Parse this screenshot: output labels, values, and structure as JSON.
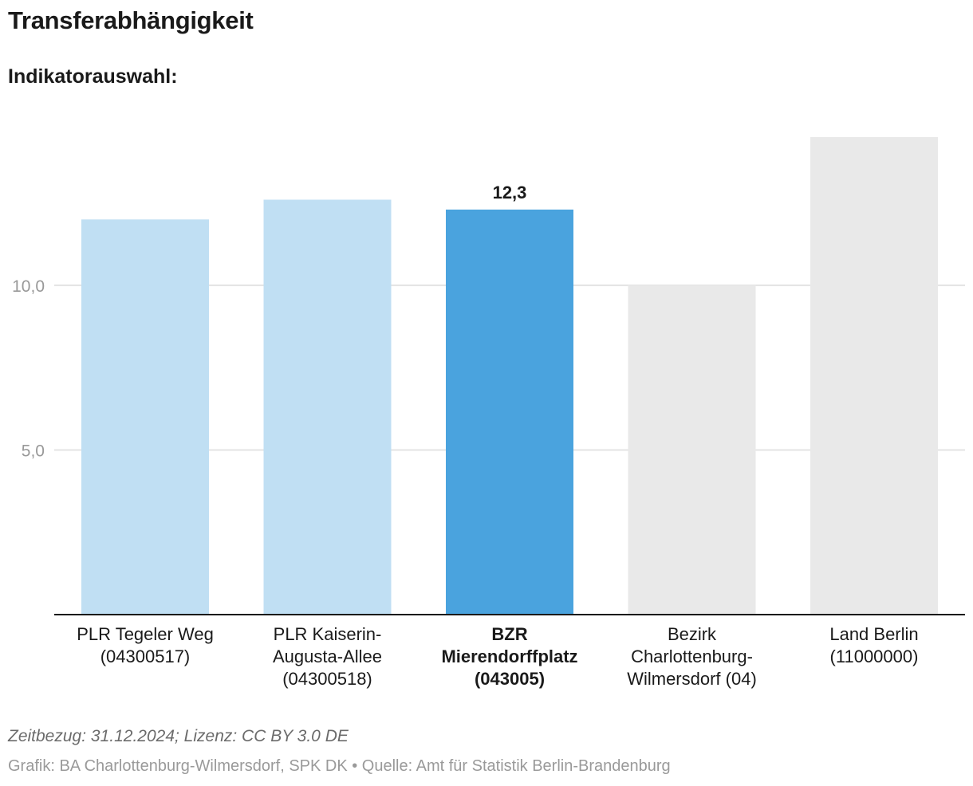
{
  "header": {
    "title": "Transferabhängigkeit",
    "subtitle": "Indikatorauswahl:"
  },
  "chart_data": {
    "type": "bar",
    "title": "Transferabhängigkeit",
    "xlabel": "",
    "ylabel": "",
    "ylim": [
      0,
      14.5
    ],
    "yticks": [
      {
        "value": 5,
        "label": "5,0"
      },
      {
        "value": 10,
        "label": "10,0"
      }
    ],
    "grid": true,
    "categories": [
      [
        "PLR Tegeler Weg",
        "(04300517)"
      ],
      [
        "PLR Kaiserin-",
        "Augusta-Allee",
        "(04300518)"
      ],
      [
        "BZR",
        "Mierendorffplatz",
        "(043005)"
      ],
      [
        "Bezirk",
        "Charlottenburg-",
        "Wilmersdorf (04)"
      ],
      [
        "Land Berlin",
        "(11000000)"
      ]
    ],
    "values": [
      12.0,
      12.6,
      12.3,
      10.0,
      14.5
    ],
    "highlight_index": 2,
    "highlight_label": "12,3",
    "colors": [
      "#c0dff3",
      "#c0dff3",
      "#4aa3de",
      "#e9e9e9",
      "#e9e9e9"
    ]
  },
  "footer": {
    "reference": "Zeitbezug: 31.12.2024; Lizenz: CC BY 3.0 DE",
    "source": "Grafik: BA Charlottenburg-Wilmersdorf, SPK DK • Quelle: Amt für Statistik Berlin-Brandenburg"
  }
}
